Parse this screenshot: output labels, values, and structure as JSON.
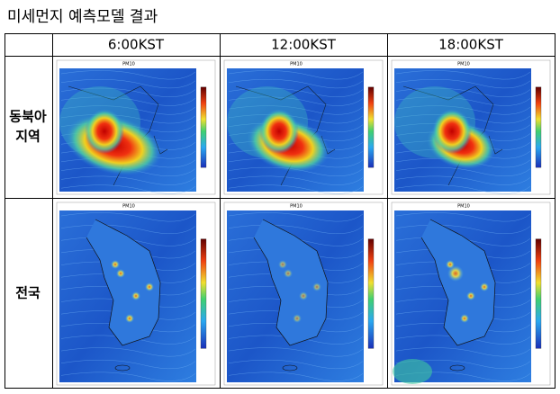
{
  "title": "미세먼지 예측모델 결과",
  "table": {
    "columns": [
      "6:00KST",
      "12:00KST",
      "18:00KST"
    ],
    "rows": [
      {
        "label": [
          "동북아",
          "지역"
        ]
      },
      {
        "label": [
          "전국"
        ]
      }
    ]
  },
  "map_label": "PM10"
}
